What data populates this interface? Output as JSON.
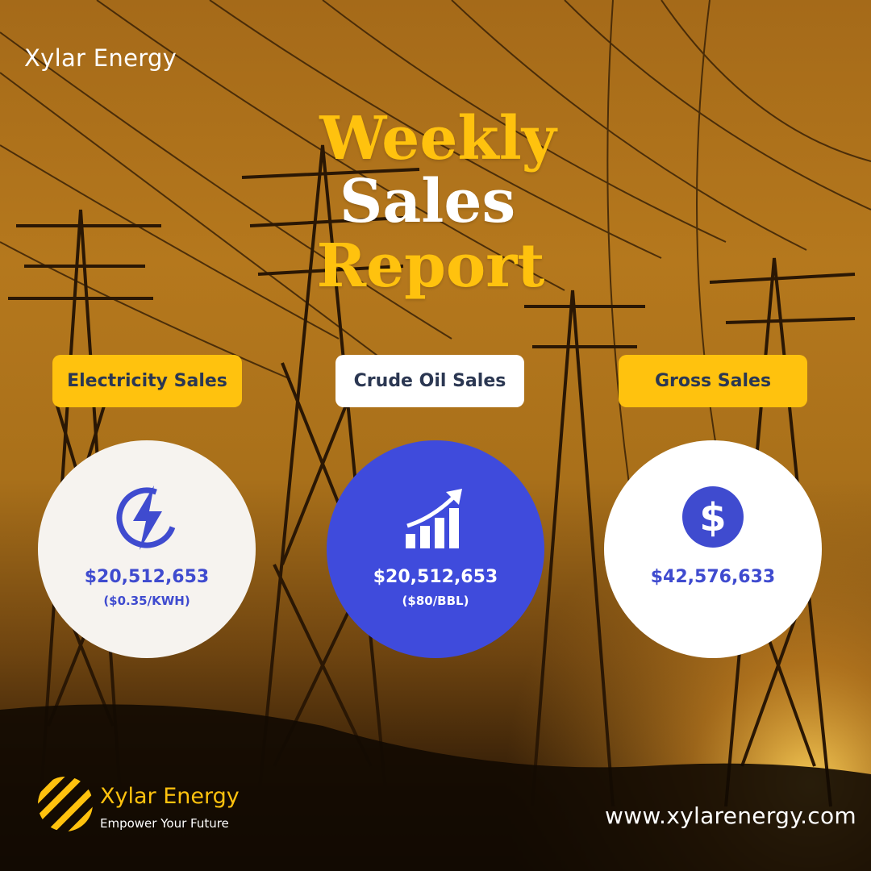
{
  "brand": {
    "name": "Xylar Energy",
    "tagline": "Empower Your Future",
    "website": "www.xylarenergy.com"
  },
  "title": {
    "line1": "Weekly",
    "line2": "Sales",
    "line3": "Report"
  },
  "cards": [
    {
      "label": "Electricity Sales",
      "amount": "$20,512,653",
      "rate": "($0.35/KWH)",
      "icon": "lightning-bolt-icon"
    },
    {
      "label": "Crude Oil Sales",
      "amount": "$20,512,653",
      "rate": "($80/BBL)",
      "icon": "growth-chart-icon"
    },
    {
      "label": "Gross Sales",
      "amount": "$42,576,633",
      "icon": "dollar-sign-icon"
    }
  ],
  "colors": {
    "accent_yellow": "#ffc20e",
    "accent_blue": "#3f4bdc",
    "label_text": "#2b3752"
  }
}
